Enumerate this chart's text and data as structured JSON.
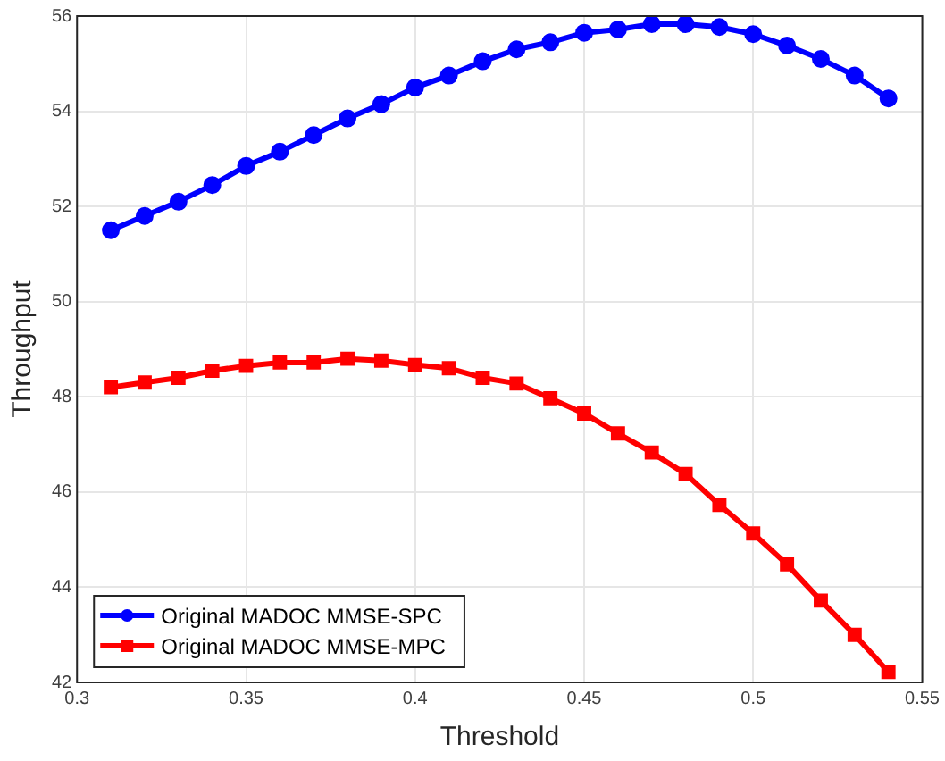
{
  "chart_data": {
    "type": "line",
    "xlabel": "Threshold",
    "ylabel": "Throughput",
    "x": [
      0.31,
      0.32,
      0.33,
      0.34,
      0.35,
      0.36,
      0.37,
      0.38,
      0.39,
      0.4,
      0.41,
      0.42,
      0.43,
      0.44,
      0.45,
      0.46,
      0.47,
      0.48,
      0.49,
      0.5,
      0.51,
      0.52,
      0.53,
      0.54
    ],
    "series": [
      {
        "name": "Original MADOC MMSE-SPC",
        "color": "#0000ff",
        "marker": "circle",
        "values": [
          51.5,
          51.8,
          52.1,
          52.45,
          52.85,
          53.15,
          53.5,
          53.85,
          54.15,
          54.5,
          54.75,
          55.05,
          55.3,
          55.45,
          55.65,
          55.72,
          55.83,
          55.83,
          55.77,
          55.62,
          55.38,
          55.1,
          54.75,
          54.27
        ]
      },
      {
        "name": "Original MADOC MMSE-MPC",
        "color": "#ff0000",
        "marker": "square",
        "values": [
          48.2,
          48.3,
          48.4,
          48.55,
          48.65,
          48.72,
          48.72,
          48.8,
          48.76,
          48.67,
          48.6,
          48.4,
          48.28,
          47.97,
          47.65,
          47.23,
          46.83,
          46.38,
          45.73,
          45.13,
          44.48,
          43.72,
          43.0,
          42.22
        ]
      }
    ],
    "xlim": [
      0.3,
      0.55
    ],
    "xticks": [
      0.3,
      0.35,
      0.4,
      0.45,
      0.5,
      0.55
    ],
    "ylim": [
      42,
      56
    ],
    "yticks": [
      42,
      44,
      46,
      48,
      50,
      52,
      54,
      56
    ],
    "grid": true,
    "legend": "bottom left",
    "line_style": "solid"
  }
}
